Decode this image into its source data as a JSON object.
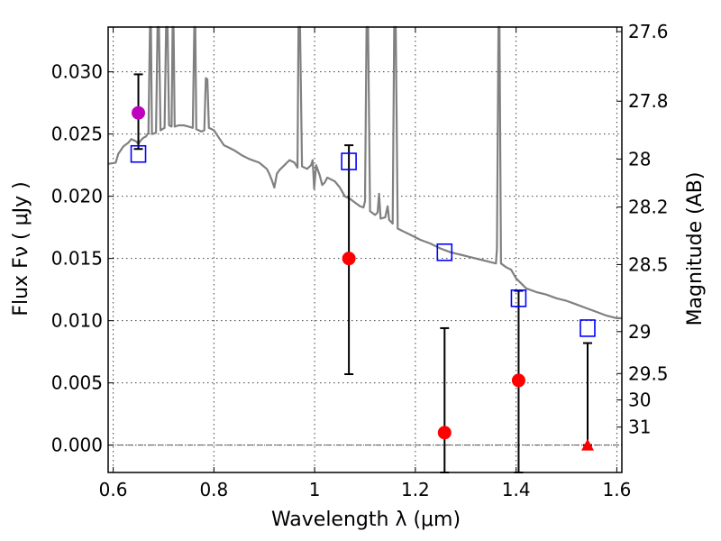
{
  "chart_data": {
    "type": "scatter",
    "xlabel": "Wavelength  λ (μm)",
    "ylabel": "Flux  Fν  ( μJy )",
    "ylabel_right": "Magnitude (AB)",
    "xlim": [
      0.59,
      1.61
    ],
    "ylim": [
      -0.0022,
      0.0336
    ],
    "x_ticks": [
      0.6,
      0.8,
      1.0,
      1.2,
      1.4,
      1.6
    ],
    "x_tick_labels": [
      "0.6",
      "0.8",
      "1",
      "1.2",
      "1.4",
      "1.6"
    ],
    "y_ticks": [
      0.0,
      0.005,
      0.01,
      0.015,
      0.02,
      0.025,
      0.03
    ],
    "y_tick_labels": [
      "0.000",
      "0.005",
      "0.010",
      "0.015",
      "0.020",
      "0.025",
      "0.030"
    ],
    "right_ticks": [
      {
        "label": "27.6",
        "flux": 0.03323
      },
      {
        "label": "27.8",
        "flux": 0.02764
      },
      {
        "label": "28",
        "flux": 0.02299
      },
      {
        "label": "28.2",
        "flux": 0.01913
      },
      {
        "label": "28.5",
        "flux": 0.01451
      },
      {
        "label": "29",
        "flux": 0.00912
      },
      {
        "label": "29.5",
        "flux": 0.00575
      },
      {
        "label": "30",
        "flux": 0.00363
      },
      {
        "label": "31",
        "flux": 0.00145
      }
    ],
    "grid": true,
    "reference_line_y": 0.0,
    "colors": {
      "spectrum": "#808080",
      "model_box": "#0000ff",
      "detection": "#ff0000",
      "optical_point": "#bf00bf",
      "errorbar": "#000000"
    },
    "series": [
      {
        "kind": "spectrum",
        "points": [
          [
            0.59,
            0.0226
          ],
          [
            0.605,
            0.0227
          ],
          [
            0.61,
            0.0234
          ],
          [
            0.62,
            0.024
          ],
          [
            0.63,
            0.0243
          ],
          [
            0.636,
            0.0246
          ],
          [
            0.641,
            0.0245
          ],
          [
            0.646,
            0.0244
          ],
          [
            0.65,
            0.0242
          ],
          [
            0.655,
            0.0245
          ],
          [
            0.66,
            0.0247
          ],
          [
            0.665,
            0.0248
          ],
          [
            0.67,
            0.0251
          ],
          [
            0.673,
            0.0336
          ],
          [
            0.675,
            0.0336
          ],
          [
            0.677,
            0.025
          ],
          [
            0.685,
            0.0251
          ],
          [
            0.688,
            0.0336
          ],
          [
            0.691,
            0.0336
          ],
          [
            0.694,
            0.0253
          ],
          [
            0.702,
            0.0255
          ],
          [
            0.705,
            0.0336
          ],
          [
            0.708,
            0.0336
          ],
          [
            0.711,
            0.0257
          ],
          [
            0.716,
            0.0256
          ],
          [
            0.718,
            0.0336
          ],
          [
            0.72,
            0.0336
          ],
          [
            0.722,
            0.0256
          ],
          [
            0.73,
            0.0257
          ],
          [
            0.74,
            0.0257
          ],
          [
            0.75,
            0.0256
          ],
          [
            0.758,
            0.0255
          ],
          [
            0.761,
            0.0336
          ],
          [
            0.763,
            0.0336
          ],
          [
            0.765,
            0.0254
          ],
          [
            0.775,
            0.0252
          ],
          [
            0.781,
            0.0253
          ],
          [
            0.784,
            0.0295
          ],
          [
            0.787,
            0.0294
          ],
          [
            0.79,
            0.0255
          ],
          [
            0.8,
            0.0253
          ],
          [
            0.81,
            0.0247
          ],
          [
            0.82,
            0.0241
          ],
          [
            0.83,
            0.0239
          ],
          [
            0.84,
            0.0237
          ],
          [
            0.855,
            0.0233
          ],
          [
            0.87,
            0.023
          ],
          [
            0.89,
            0.0227
          ],
          [
            0.905,
            0.0222
          ],
          [
            0.91,
            0.0218
          ],
          [
            0.915,
            0.0213
          ],
          [
            0.92,
            0.0207
          ],
          [
            0.925,
            0.0218
          ],
          [
            0.93,
            0.0221
          ],
          [
            0.94,
            0.0225
          ],
          [
            0.95,
            0.0229
          ],
          [
            0.96,
            0.0227
          ],
          [
            0.966,
            0.0223
          ],
          [
            0.968,
            0.0336
          ],
          [
            0.971,
            0.0336
          ],
          [
            0.975,
            0.0224
          ],
          [
            0.985,
            0.0222
          ],
          [
            0.993,
            0.0225
          ],
          [
            0.996,
            0.0229
          ],
          [
            0.999,
            0.0206
          ],
          [
            1.003,
            0.0225
          ],
          [
            1.01,
            0.0217
          ],
          [
            1.015,
            0.0209
          ],
          [
            1.02,
            0.0211
          ],
          [
            1.025,
            0.0215
          ],
          [
            1.03,
            0.0214
          ],
          [
            1.04,
            0.0212
          ],
          [
            1.05,
            0.0207
          ],
          [
            1.06,
            0.02
          ],
          [
            1.07,
            0.0198
          ],
          [
            1.08,
            0.0195
          ],
          [
            1.09,
            0.0192
          ],
          [
            1.097,
            0.0191
          ],
          [
            1.1,
            0.0196
          ],
          [
            1.103,
            0.0336
          ],
          [
            1.106,
            0.0336
          ],
          [
            1.11,
            0.0188
          ],
          [
            1.12,
            0.0185
          ],
          [
            1.125,
            0.0187
          ],
          [
            1.128,
            0.0202
          ],
          [
            1.131,
            0.0182
          ],
          [
            1.14,
            0.0183
          ],
          [
            1.145,
            0.0192
          ],
          [
            1.148,
            0.0181
          ],
          [
            1.155,
            0.0178
          ],
          [
            1.158,
            0.0336
          ],
          [
            1.161,
            0.0336
          ],
          [
            1.165,
            0.0174
          ],
          [
            1.175,
            0.0172
          ],
          [
            1.19,
            0.0169
          ],
          [
            1.21,
            0.0165
          ],
          [
            1.23,
            0.0162
          ],
          [
            1.25,
            0.0158
          ],
          [
            1.27,
            0.0155
          ],
          [
            1.29,
            0.0153
          ],
          [
            1.31,
            0.0151
          ],
          [
            1.33,
            0.0149
          ],
          [
            1.35,
            0.0147
          ],
          [
            1.36,
            0.0146
          ],
          [
            1.362,
            0.0158
          ],
          [
            1.365,
            0.0336
          ],
          [
            1.367,
            0.0336
          ],
          [
            1.37,
            0.0146
          ],
          [
            1.38,
            0.0143
          ],
          [
            1.39,
            0.0141
          ],
          [
            1.4,
            0.0134
          ],
          [
            1.42,
            0.0126
          ],
          [
            1.44,
            0.0123
          ],
          [
            1.46,
            0.0121
          ],
          [
            1.48,
            0.0118
          ],
          [
            1.5,
            0.0116
          ],
          [
            1.52,
            0.0113
          ],
          [
            1.54,
            0.011
          ],
          [
            1.56,
            0.0107
          ],
          [
            1.58,
            0.0104
          ],
          [
            1.6,
            0.0102
          ],
          [
            1.61,
            0.0102
          ]
        ]
      },
      {
        "kind": "model_boxes",
        "points": [
          [
            0.65,
            0.0234
          ],
          [
            1.068,
            0.0228
          ],
          [
            1.258,
            0.0155
          ],
          [
            1.405,
            0.0118
          ],
          [
            1.542,
            0.0094
          ]
        ]
      },
      {
        "kind": "optical_point",
        "points": [
          {
            "x": 0.65,
            "y": 0.0267,
            "err_lo": 0.0238,
            "err_hi": 0.0298
          }
        ]
      },
      {
        "kind": "nir_detections",
        "points": [
          {
            "x": 1.068,
            "y": 0.015,
            "err_lo": 0.0057,
            "err_hi": 0.0241
          },
          {
            "x": 1.258,
            "y": 0.001,
            "err_lo": -0.0022,
            "err_hi": 0.0094
          },
          {
            "x": 1.405,
            "y": 0.0052,
            "err_lo": -0.0022,
            "err_hi": 0.0124
          }
        ]
      },
      {
        "kind": "upper_limit",
        "points": [
          {
            "x": 1.542,
            "y": 0.0,
            "err_lo": 0.0,
            "err_hi": 0.0082
          }
        ]
      }
    ]
  }
}
